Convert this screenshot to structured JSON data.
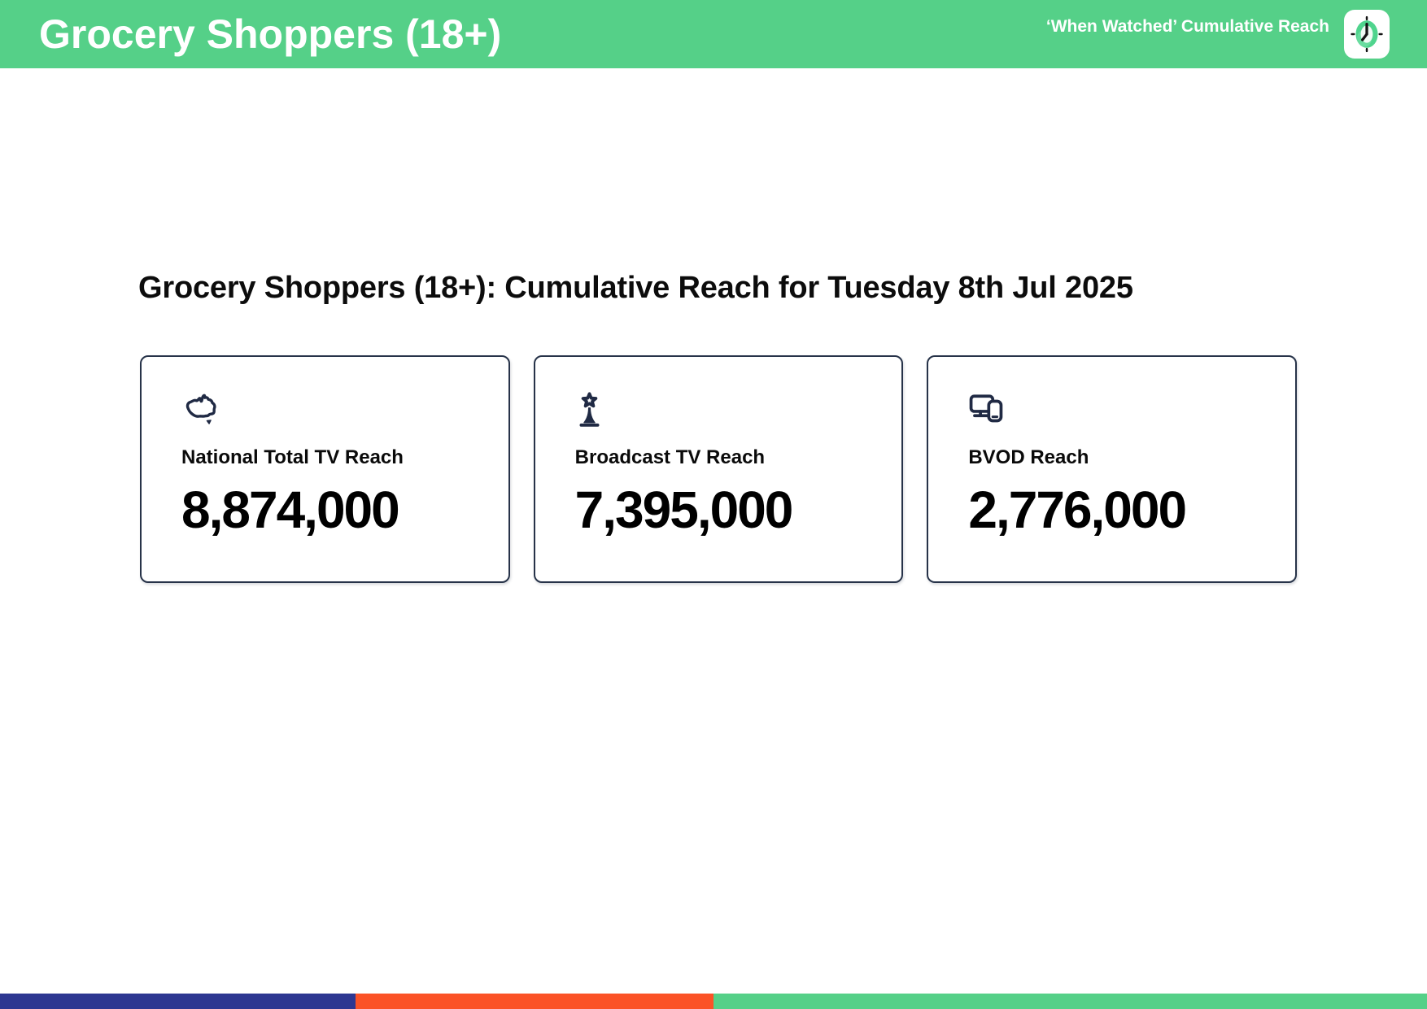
{
  "header": {
    "title": "Grocery Shoppers (18+)",
    "subtitle": "‘When Watched’ Cumulative Reach"
  },
  "main": {
    "heading": "Grocery Shoppers (18+): Cumulative Reach for Tuesday 8th Jul 2025",
    "cards": [
      {
        "icon": "australia-map-icon",
        "label": "National Total TV Reach",
        "value": "8,874,000"
      },
      {
        "icon": "broadcast-tower-icon",
        "label": "Broadcast TV Reach",
        "value": "7,395,000"
      },
      {
        "icon": "devices-icon",
        "label": "BVOD Reach",
        "value": "2,776,000"
      }
    ]
  },
  "footer": {
    "segments": [
      {
        "name": "blue",
        "color": "#2E3791",
        "width_pct": 24.9
      },
      {
        "name": "orange",
        "color": "#FB5226",
        "width_pct": 25.1
      },
      {
        "name": "green",
        "color": "#55D088",
        "width_pct": 50.0
      }
    ]
  },
  "theme": {
    "header_bg": "#55D088",
    "icon_navy": "#202A44",
    "card_border": "#273349",
    "logo_ring_green": "#4FD48D",
    "logo_face": "#EFFBF4"
  }
}
